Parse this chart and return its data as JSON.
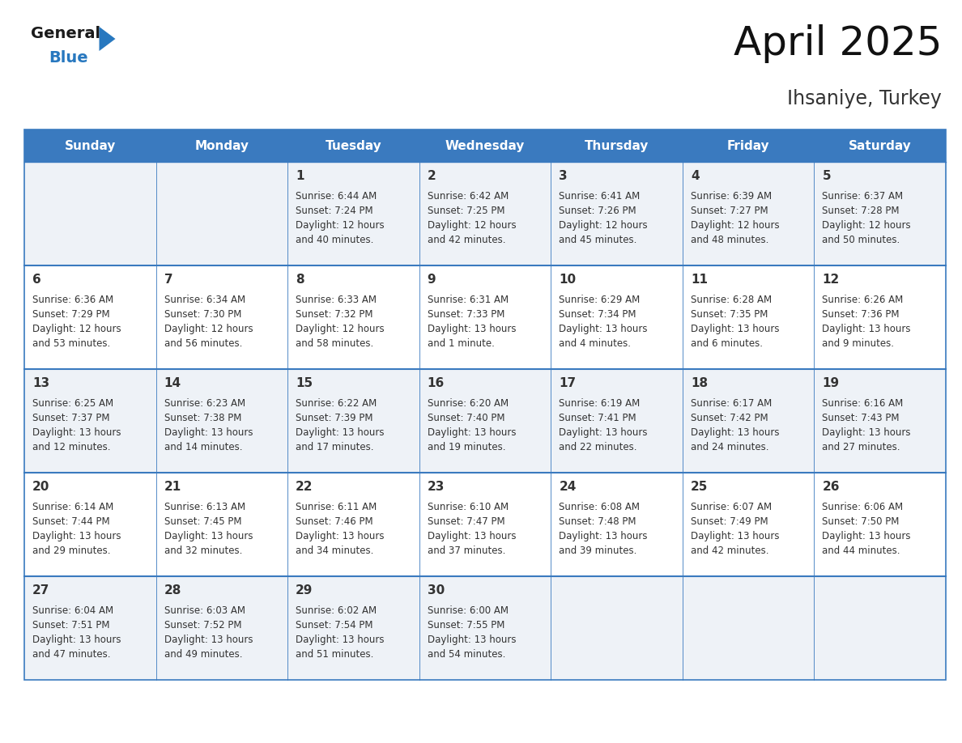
{
  "title": "April 2025",
  "subtitle": "Ihsaniye, Turkey",
  "header_bg": "#3a7abf",
  "header_text": "#ffffff",
  "cell_bg_odd": "#eef2f7",
  "cell_bg_even": "#ffffff",
  "divider_color": "#3a7abf",
  "text_color": "#333333",
  "days_of_week": [
    "Sunday",
    "Monday",
    "Tuesday",
    "Wednesday",
    "Thursday",
    "Friday",
    "Saturday"
  ],
  "calendar": [
    [
      {
        "day": null,
        "info": ""
      },
      {
        "day": null,
        "info": ""
      },
      {
        "day": 1,
        "info": "Sunrise: 6:44 AM\nSunset: 7:24 PM\nDaylight: 12 hours\nand 40 minutes."
      },
      {
        "day": 2,
        "info": "Sunrise: 6:42 AM\nSunset: 7:25 PM\nDaylight: 12 hours\nand 42 minutes."
      },
      {
        "day": 3,
        "info": "Sunrise: 6:41 AM\nSunset: 7:26 PM\nDaylight: 12 hours\nand 45 minutes."
      },
      {
        "day": 4,
        "info": "Sunrise: 6:39 AM\nSunset: 7:27 PM\nDaylight: 12 hours\nand 48 minutes."
      },
      {
        "day": 5,
        "info": "Sunrise: 6:37 AM\nSunset: 7:28 PM\nDaylight: 12 hours\nand 50 minutes."
      }
    ],
    [
      {
        "day": 6,
        "info": "Sunrise: 6:36 AM\nSunset: 7:29 PM\nDaylight: 12 hours\nand 53 minutes."
      },
      {
        "day": 7,
        "info": "Sunrise: 6:34 AM\nSunset: 7:30 PM\nDaylight: 12 hours\nand 56 minutes."
      },
      {
        "day": 8,
        "info": "Sunrise: 6:33 AM\nSunset: 7:32 PM\nDaylight: 12 hours\nand 58 minutes."
      },
      {
        "day": 9,
        "info": "Sunrise: 6:31 AM\nSunset: 7:33 PM\nDaylight: 13 hours\nand 1 minute."
      },
      {
        "day": 10,
        "info": "Sunrise: 6:29 AM\nSunset: 7:34 PM\nDaylight: 13 hours\nand 4 minutes."
      },
      {
        "day": 11,
        "info": "Sunrise: 6:28 AM\nSunset: 7:35 PM\nDaylight: 13 hours\nand 6 minutes."
      },
      {
        "day": 12,
        "info": "Sunrise: 6:26 AM\nSunset: 7:36 PM\nDaylight: 13 hours\nand 9 minutes."
      }
    ],
    [
      {
        "day": 13,
        "info": "Sunrise: 6:25 AM\nSunset: 7:37 PM\nDaylight: 13 hours\nand 12 minutes."
      },
      {
        "day": 14,
        "info": "Sunrise: 6:23 AM\nSunset: 7:38 PM\nDaylight: 13 hours\nand 14 minutes."
      },
      {
        "day": 15,
        "info": "Sunrise: 6:22 AM\nSunset: 7:39 PM\nDaylight: 13 hours\nand 17 minutes."
      },
      {
        "day": 16,
        "info": "Sunrise: 6:20 AM\nSunset: 7:40 PM\nDaylight: 13 hours\nand 19 minutes."
      },
      {
        "day": 17,
        "info": "Sunrise: 6:19 AM\nSunset: 7:41 PM\nDaylight: 13 hours\nand 22 minutes."
      },
      {
        "day": 18,
        "info": "Sunrise: 6:17 AM\nSunset: 7:42 PM\nDaylight: 13 hours\nand 24 minutes."
      },
      {
        "day": 19,
        "info": "Sunrise: 6:16 AM\nSunset: 7:43 PM\nDaylight: 13 hours\nand 27 minutes."
      }
    ],
    [
      {
        "day": 20,
        "info": "Sunrise: 6:14 AM\nSunset: 7:44 PM\nDaylight: 13 hours\nand 29 minutes."
      },
      {
        "day": 21,
        "info": "Sunrise: 6:13 AM\nSunset: 7:45 PM\nDaylight: 13 hours\nand 32 minutes."
      },
      {
        "day": 22,
        "info": "Sunrise: 6:11 AM\nSunset: 7:46 PM\nDaylight: 13 hours\nand 34 minutes."
      },
      {
        "day": 23,
        "info": "Sunrise: 6:10 AM\nSunset: 7:47 PM\nDaylight: 13 hours\nand 37 minutes."
      },
      {
        "day": 24,
        "info": "Sunrise: 6:08 AM\nSunset: 7:48 PM\nDaylight: 13 hours\nand 39 minutes."
      },
      {
        "day": 25,
        "info": "Sunrise: 6:07 AM\nSunset: 7:49 PM\nDaylight: 13 hours\nand 42 minutes."
      },
      {
        "day": 26,
        "info": "Sunrise: 6:06 AM\nSunset: 7:50 PM\nDaylight: 13 hours\nand 44 minutes."
      }
    ],
    [
      {
        "day": 27,
        "info": "Sunrise: 6:04 AM\nSunset: 7:51 PM\nDaylight: 13 hours\nand 47 minutes."
      },
      {
        "day": 28,
        "info": "Sunrise: 6:03 AM\nSunset: 7:52 PM\nDaylight: 13 hours\nand 49 minutes."
      },
      {
        "day": 29,
        "info": "Sunrise: 6:02 AM\nSunset: 7:54 PM\nDaylight: 13 hours\nand 51 minutes."
      },
      {
        "day": 30,
        "info": "Sunrise: 6:00 AM\nSunset: 7:55 PM\nDaylight: 13 hours\nand 54 minutes."
      },
      {
        "day": null,
        "info": ""
      },
      {
        "day": null,
        "info": ""
      },
      {
        "day": null,
        "info": ""
      }
    ]
  ],
  "logo_black_color": "#1a1a1a",
  "logo_blue_color": "#2878bf",
  "title_fontsize": 36,
  "subtitle_fontsize": 17,
  "header_fontsize": 11,
  "day_num_fontsize": 11,
  "info_fontsize": 8.5
}
